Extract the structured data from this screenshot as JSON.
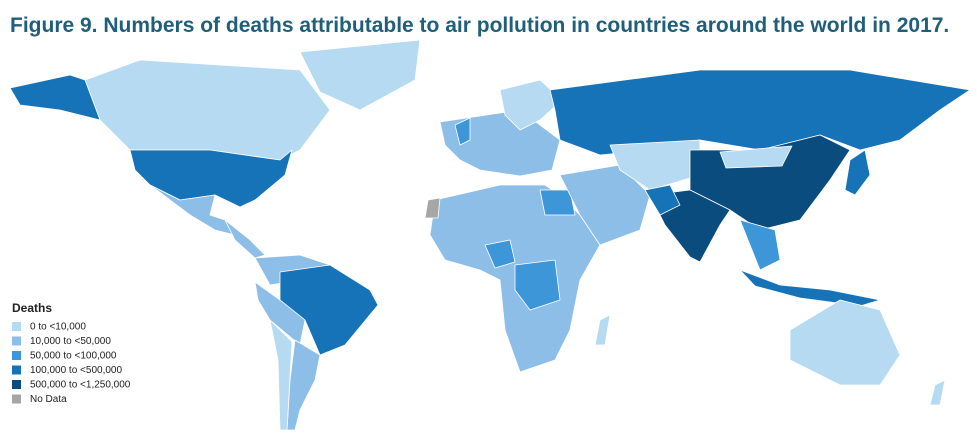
{
  "title": "Figure 9. Numbers of deaths attributable to air pollution in countries around the world in 2017.",
  "legend": {
    "title": "Deaths",
    "items": [
      {
        "label": "0 to <10,000",
        "color": "#b5daf2"
      },
      {
        "label": "10,000 to <50,000",
        "color": "#8dbee8"
      },
      {
        "label": "50,000 to <100,000",
        "color": "#3d96d8"
      },
      {
        "label": "100,000 to <500,000",
        "color": "#1673b8"
      },
      {
        "label": "500,000 to <1,250,000",
        "color": "#0b4c7e"
      },
      {
        "label": "No Data",
        "color": "#a6a6a6"
      }
    ]
  }
}
